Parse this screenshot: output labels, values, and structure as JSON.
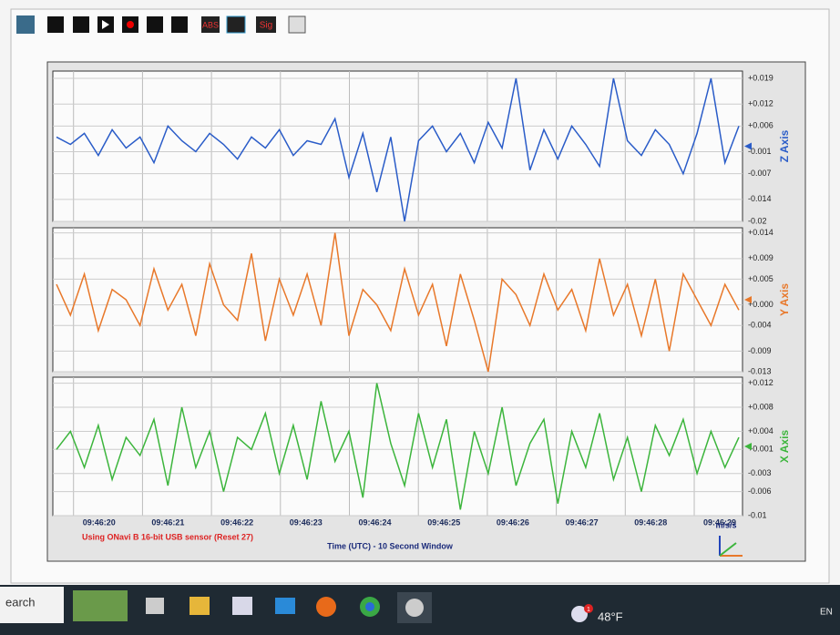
{
  "toolbar": {
    "abs": "ABS",
    "sig": "Sig"
  },
  "chart_data": [
    {
      "type": "line",
      "ylabel": "Z Axis",
      "color": "#2a5cc8",
      "ylim": [
        -0.02,
        0.021
      ],
      "yticks": [
        {
          "value": 0.019,
          "label": "+0.019"
        },
        {
          "value": 0.012,
          "label": "+0.012"
        },
        {
          "value": 0.006,
          "label": "+0.006"
        },
        -0.001,
        -0.007,
        -0.014,
        -0.02
      ],
      "values": [
        0.003,
        0.001,
        0.004,
        -0.002,
        0.005,
        0.0,
        0.003,
        -0.004,
        0.006,
        0.002,
        -0.001,
        0.004,
        0.001,
        -0.003,
        0.003,
        0.0,
        0.005,
        -0.002,
        0.002,
        0.001,
        0.008,
        -0.008,
        0.004,
        -0.012,
        0.003,
        -0.02,
        0.002,
        0.006,
        -0.001,
        0.004,
        -0.004,
        0.007,
        0.0,
        0.019,
        -0.006,
        0.005,
        -0.003,
        0.006,
        0.001,
        -0.005,
        0.019,
        0.002,
        -0.002,
        0.005,
        0.001,
        -0.007,
        0.004,
        0.019,
        -0.004,
        0.006
      ]
    },
    {
      "type": "line",
      "ylabel": "Y Axis",
      "color": "#e8782a",
      "ylim": [
        -0.013,
        0.015
      ],
      "yticks": [
        {
          "value": 0.014,
          "label": "+0.014"
        },
        {
          "value": 0.009,
          "label": "+0.009"
        },
        {
          "value": 0.005,
          "label": "+0.005"
        },
        {
          "value": 0,
          "label": "+0.000"
        },
        -0.004,
        -0.009,
        -0.013
      ],
      "values": [
        0.004,
        -0.002,
        0.006,
        -0.005,
        0.003,
        0.001,
        -0.004,
        0.007,
        -0.001,
        0.004,
        -0.006,
        0.008,
        0.0,
        -0.003,
        0.01,
        -0.007,
        0.005,
        -0.002,
        0.006,
        -0.004,
        0.014,
        -0.006,
        0.003,
        0.0,
        -0.005,
        0.007,
        -0.002,
        0.004,
        -0.008,
        0.006,
        -0.003,
        -0.013,
        0.005,
        0.002,
        -0.004,
        0.006,
        -0.001,
        0.003,
        -0.005,
        0.009,
        -0.002,
        0.004,
        -0.006,
        0.005,
        -0.009,
        0.006,
        0.001,
        -0.004,
        0.004,
        -0.001
      ]
    },
    {
      "type": "line",
      "ylabel": "X Axis",
      "color": "#3cb53c",
      "ylim": [
        -0.01,
        0.013
      ],
      "yticks": [
        {
          "value": 0.012,
          "label": "+0.012"
        },
        {
          "value": 0.008,
          "label": "+0.008"
        },
        {
          "value": 0.004,
          "label": "+0.004"
        },
        {
          "value": 0.001,
          "label": "+0.001"
        },
        -0.003,
        -0.006,
        -0.01
      ],
      "values": [
        0.001,
        0.004,
        -0.002,
        0.005,
        -0.004,
        0.003,
        0.0,
        0.006,
        -0.005,
        0.008,
        -0.002,
        0.004,
        -0.006,
        0.003,
        0.001,
        0.007,
        -0.003,
        0.005,
        -0.004,
        0.009,
        -0.001,
        0.004,
        -0.007,
        0.012,
        0.002,
        -0.005,
        0.007,
        -0.002,
        0.006,
        -0.009,
        0.004,
        -0.003,
        0.008,
        -0.005,
        0.002,
        0.006,
        -0.008,
        0.004,
        -0.002,
        0.007,
        -0.004,
        0.003,
        -0.006,
        0.005,
        0.0,
        0.006,
        -0.003,
        0.004,
        -0.002,
        0.003
      ]
    }
  ],
  "time_axis": {
    "ticks": [
      "09:46:20",
      "09:46:21",
      "09:46:22",
      "09:46:23",
      "09:46:24",
      "09:46:25",
      "09:46:26",
      "09:46:27",
      "09:46:28",
      "09:46:29"
    ],
    "title": "Time (UTC) - 10 Second Window",
    "units": "m/s/s"
  },
  "sensor_note": "Using ONavi B 16-bit USB sensor (Reset 27)",
  "taskbar": {
    "search": "earch",
    "badge": "1",
    "weather": "48°F",
    "lang": "EN"
  }
}
